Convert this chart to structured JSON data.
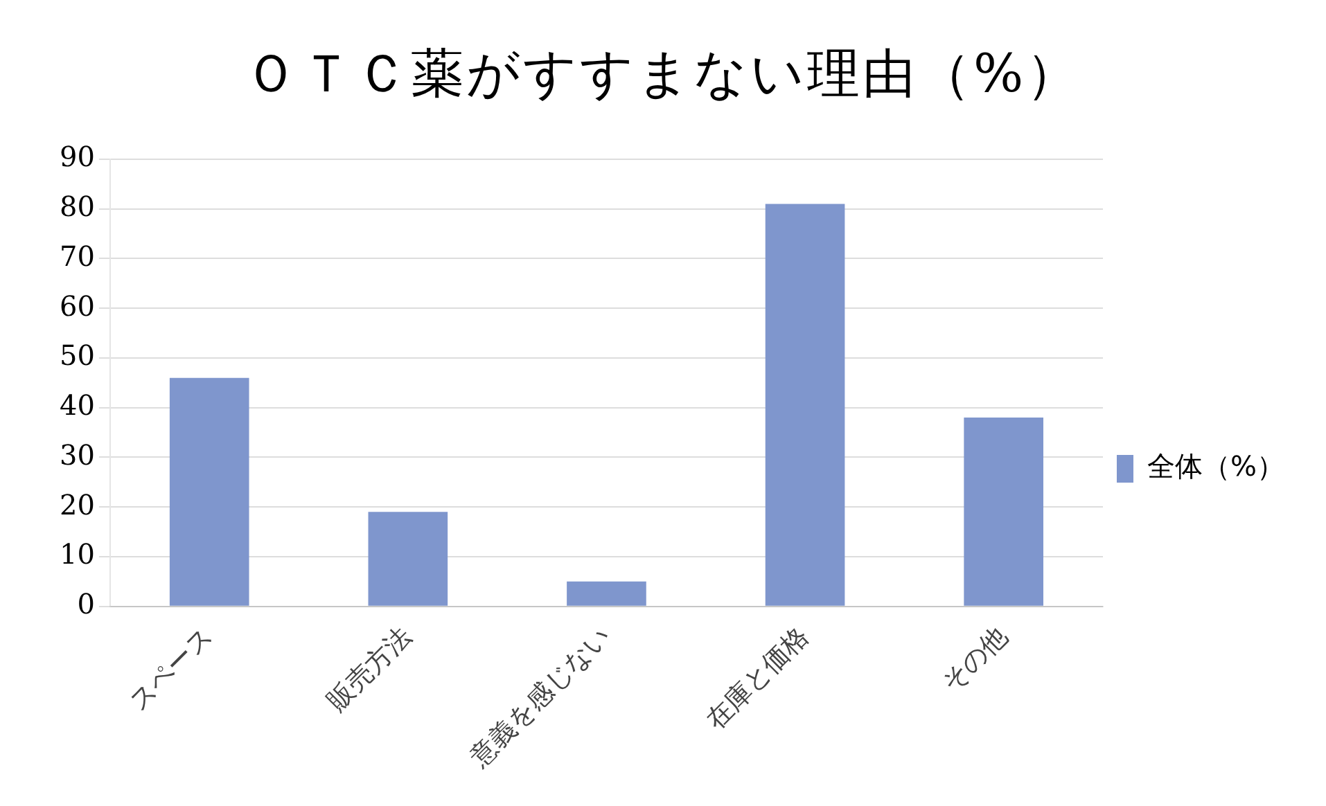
{
  "chart_data": {
    "type": "bar",
    "title": "ＯＴＣ薬がすすまない理由（%）",
    "categories": [
      "スペース",
      "販売方法",
      "意義を感じない",
      "在庫と価格",
      "その他"
    ],
    "series": [
      {
        "name": "全体（%）",
        "color": "#7f96cd",
        "values": [
          46,
          19,
          5,
          81,
          38
        ]
      }
    ],
    "ylim": [
      0,
      90
    ],
    "yticks": [
      0,
      10,
      20,
      30,
      40,
      50,
      60,
      70,
      80,
      90
    ],
    "grid": "y",
    "legend": "right"
  }
}
